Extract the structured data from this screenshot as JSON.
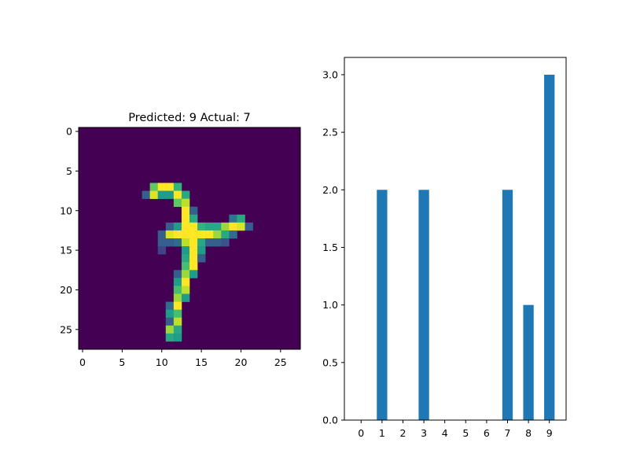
{
  "chart_data": [
    {
      "type": "heatmap",
      "title": "Predicted: 9 Actual: 7",
      "colormap": "viridis",
      "xlim": [
        -0.5,
        27.5
      ],
      "ylim": [
        27.5,
        -0.5
      ],
      "xticks": [
        0,
        5,
        10,
        15,
        20,
        25
      ],
      "yticks": [
        0,
        5,
        10,
        15,
        20,
        25
      ],
      "width": 28,
      "height": 28,
      "pixels": [
        {
          "row": 7,
          "col": 9,
          "v": 0.75
        },
        {
          "row": 7,
          "col": 10,
          "v": 1.0
        },
        {
          "row": 7,
          "col": 11,
          "v": 1.0
        },
        {
          "row": 7,
          "col": 12,
          "v": 0.65
        },
        {
          "row": 8,
          "col": 8,
          "v": 0.3
        },
        {
          "row": 8,
          "col": 9,
          "v": 0.95
        },
        {
          "row": 8,
          "col": 10,
          "v": 0.55
        },
        {
          "row": 8,
          "col": 11,
          "v": 0.55
        },
        {
          "row": 8,
          "col": 12,
          "v": 1.0
        },
        {
          "row": 8,
          "col": 13,
          "v": 0.6
        },
        {
          "row": 9,
          "col": 12,
          "v": 0.75
        },
        {
          "row": 9,
          "col": 13,
          "v": 0.9
        },
        {
          "row": 10,
          "col": 13,
          "v": 1.0
        },
        {
          "row": 10,
          "col": 14,
          "v": 0.3
        },
        {
          "row": 11,
          "col": 13,
          "v": 1.0
        },
        {
          "row": 11,
          "col": 14,
          "v": 0.6
        },
        {
          "row": 11,
          "col": 19,
          "v": 0.4
        },
        {
          "row": 11,
          "col": 20,
          "v": 0.6
        },
        {
          "row": 12,
          "col": 11,
          "v": 0.3
        },
        {
          "row": 12,
          "col": 12,
          "v": 0.55
        },
        {
          "row": 12,
          "col": 13,
          "v": 1.0
        },
        {
          "row": 12,
          "col": 14,
          "v": 1.0
        },
        {
          "row": 12,
          "col": 15,
          "v": 0.65
        },
        {
          "row": 12,
          "col": 16,
          "v": 0.6
        },
        {
          "row": 12,
          "col": 17,
          "v": 0.6
        },
        {
          "row": 12,
          "col": 18,
          "v": 0.85
        },
        {
          "row": 12,
          "col": 19,
          "v": 1.0
        },
        {
          "row": 12,
          "col": 20,
          "v": 0.95
        },
        {
          "row": 12,
          "col": 21,
          "v": 0.3
        },
        {
          "row": 13,
          "col": 10,
          "v": 0.3
        },
        {
          "row": 13,
          "col": 11,
          "v": 0.95
        },
        {
          "row": 13,
          "col": 12,
          "v": 1.0
        },
        {
          "row": 13,
          "col": 13,
          "v": 1.0
        },
        {
          "row": 13,
          "col": 14,
          "v": 1.0
        },
        {
          "row": 13,
          "col": 15,
          "v": 1.0
        },
        {
          "row": 13,
          "col": 16,
          "v": 1.0
        },
        {
          "row": 13,
          "col": 17,
          "v": 0.85
        },
        {
          "row": 13,
          "col": 18,
          "v": 0.6
        },
        {
          "row": 13,
          "col": 19,
          "v": 0.35
        },
        {
          "row": 14,
          "col": 10,
          "v": 0.3
        },
        {
          "row": 14,
          "col": 11,
          "v": 0.3
        },
        {
          "row": 14,
          "col": 12,
          "v": 0.35
        },
        {
          "row": 14,
          "col": 13,
          "v": 0.9
        },
        {
          "row": 14,
          "col": 14,
          "v": 1.0
        },
        {
          "row": 14,
          "col": 15,
          "v": 0.6
        },
        {
          "row": 14,
          "col": 16,
          "v": 0.3
        },
        {
          "row": 14,
          "col": 17,
          "v": 0.3
        },
        {
          "row": 14,
          "col": 18,
          "v": 0.25
        },
        {
          "row": 15,
          "col": 10,
          "v": 0.2
        },
        {
          "row": 15,
          "col": 13,
          "v": 0.55
        },
        {
          "row": 15,
          "col": 14,
          "v": 1.0
        },
        {
          "row": 15,
          "col": 15,
          "v": 0.55
        },
        {
          "row": 16,
          "col": 13,
          "v": 0.6
        },
        {
          "row": 16,
          "col": 14,
          "v": 1.0
        },
        {
          "row": 16,
          "col": 15,
          "v": 0.3
        },
        {
          "row": 17,
          "col": 13,
          "v": 0.7
        },
        {
          "row": 17,
          "col": 14,
          "v": 1.0
        },
        {
          "row": 18,
          "col": 12,
          "v": 0.3
        },
        {
          "row": 18,
          "col": 13,
          "v": 0.85
        },
        {
          "row": 18,
          "col": 14,
          "v": 0.55
        },
        {
          "row": 19,
          "col": 12,
          "v": 0.55
        },
        {
          "row": 19,
          "col": 13,
          "v": 1.0
        },
        {
          "row": 20,
          "col": 12,
          "v": 0.7
        },
        {
          "row": 20,
          "col": 13,
          "v": 0.9
        },
        {
          "row": 21,
          "col": 12,
          "v": 0.85
        },
        {
          "row": 21,
          "col": 13,
          "v": 0.55
        },
        {
          "row": 22,
          "col": 11,
          "v": 0.35
        },
        {
          "row": 22,
          "col": 12,
          "v": 1.0
        },
        {
          "row": 23,
          "col": 11,
          "v": 0.55
        },
        {
          "row": 23,
          "col": 12,
          "v": 0.7
        },
        {
          "row": 24,
          "col": 11,
          "v": 0.3
        },
        {
          "row": 24,
          "col": 12,
          "v": 0.9
        },
        {
          "row": 25,
          "col": 11,
          "v": 0.85
        },
        {
          "row": 25,
          "col": 12,
          "v": 0.6
        },
        {
          "row": 26,
          "col": 11,
          "v": 0.6
        },
        {
          "row": 26,
          "col": 12,
          "v": 0.55
        }
      ]
    },
    {
      "type": "bar",
      "title": "",
      "xlabel": "",
      "ylabel": "",
      "categories": [
        "0",
        "1",
        "2",
        "3",
        "4",
        "5",
        "6",
        "7",
        "8",
        "9"
      ],
      "values": [
        0,
        2,
        0,
        2,
        0,
        0,
        0,
        2,
        1,
        3
      ],
      "ylim": [
        0,
        3.15
      ],
      "yticks": [
        0.0,
        0.5,
        1.0,
        1.5,
        2.0,
        2.5,
        3.0
      ],
      "ytick_labels": [
        "0.0",
        "0.5",
        "1.0",
        "1.5",
        "2.0",
        "2.5",
        "3.0"
      ],
      "color": "#1f77b4",
      "grid": false
    }
  ]
}
